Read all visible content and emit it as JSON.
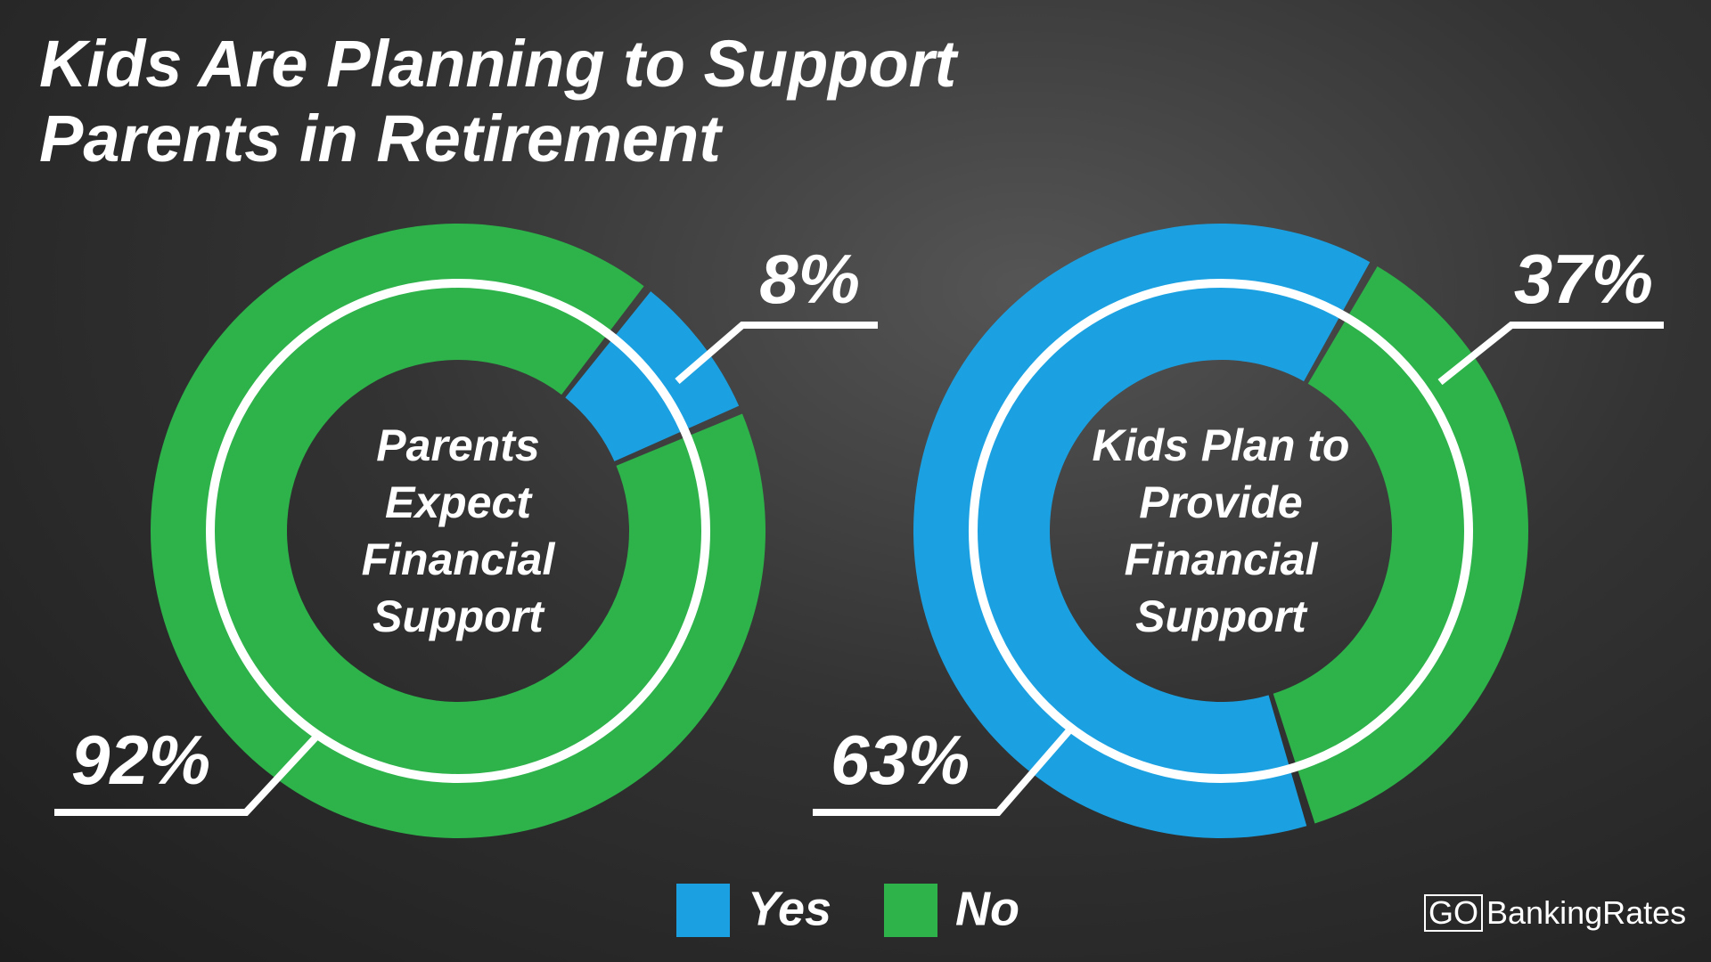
{
  "title": "Kids Are Planning to Support Parents in Retirement",
  "brand": {
    "prefix": "GO",
    "name": "BankingRates"
  },
  "chart_data": [
    {
      "type": "donut",
      "title": "Parents Expect Financial Support",
      "categories": [
        "Yes",
        "No"
      ],
      "values": [
        8,
        92
      ],
      "value_labels": [
        "8%",
        "92%"
      ],
      "colors": [
        "#1ba1e2",
        "#2db34a"
      ]
    },
    {
      "type": "donut",
      "title": "Kids Plan to Provide Financial Support",
      "categories": [
        "Yes",
        "No"
      ],
      "values": [
        63,
        37
      ],
      "value_labels": [
        "63%",
        "37%"
      ],
      "colors": [
        "#1ba1e2",
        "#2db34a"
      ]
    }
  ]
}
